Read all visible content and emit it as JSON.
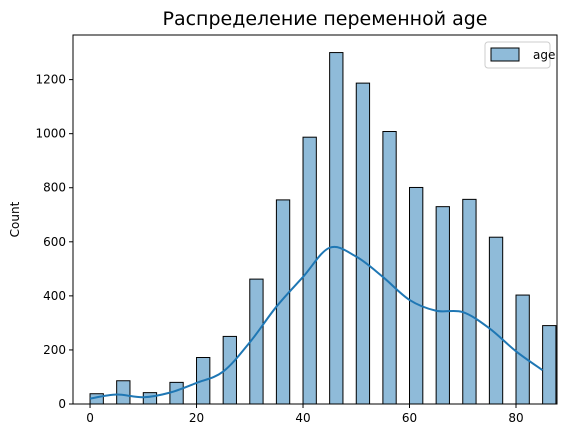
{
  "chart_data": {
    "type": "bar",
    "title": "Распределение переменной age",
    "xlabel": "",
    "ylabel": "Count",
    "xlim": [
      -3.2,
      87.7
    ],
    "ylim": [
      0,
      1365
    ],
    "x_ticks": [
      0,
      20,
      40,
      60,
      80
    ],
    "y_ticks": [
      0,
      200,
      400,
      600,
      800,
      1000,
      1200
    ],
    "bin_width": 2.5,
    "series": [
      {
        "name": "age",
        "color": "#1f77b4",
        "bin_starts": [
          0,
          5,
          10,
          15,
          20,
          25,
          30,
          35,
          40,
          45,
          50,
          55,
          60,
          65,
          70,
          75,
          80,
          85
        ],
        "values": [
          38,
          86,
          42,
          80,
          172,
          250,
          462,
          755,
          987,
          1300,
          1187,
          1008,
          801,
          730,
          757,
          617,
          403,
          290
        ]
      }
    ],
    "kde": {
      "color": "#1f77b4",
      "x": [
        0,
        5,
        10,
        15,
        20,
        25,
        30,
        35,
        40,
        45,
        50,
        55,
        60,
        65,
        70,
        75,
        80,
        85
      ],
      "y": [
        20,
        35,
        25,
        42,
        78,
        120,
        228,
        360,
        470,
        578,
        545,
        470,
        385,
        345,
        340,
        280,
        195,
        125
      ]
    },
    "legend": {
      "position": "top-right",
      "entries": [
        "age"
      ]
    },
    "grid": false
  }
}
